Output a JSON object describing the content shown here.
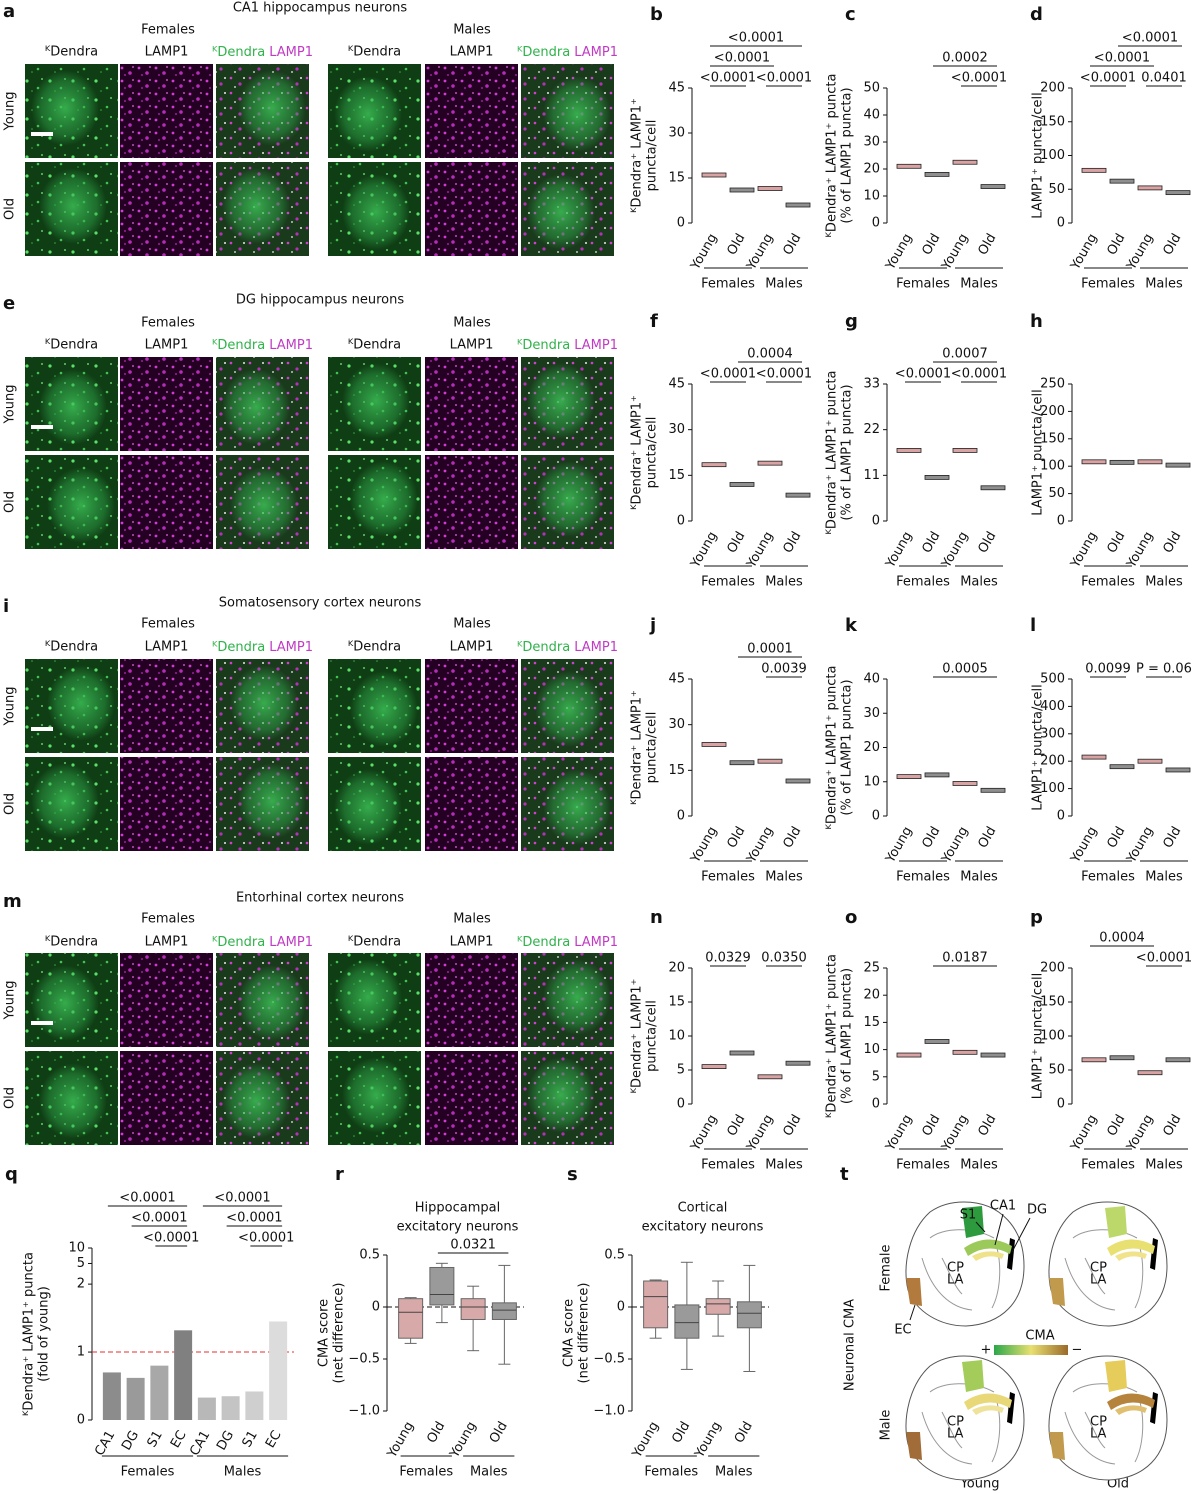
{
  "figure": {
    "image_panels": [
      {
        "letter": "a",
        "title": "CA1 hippocampus neurons",
        "groups": [
          "Females",
          "Males"
        ],
        "channels": [
          "ᴷDendra",
          "LAMP1"
        ],
        "rows": [
          "Young",
          "Old"
        ]
      },
      {
        "letter": "e",
        "title": "DG hippocampus neurons",
        "groups": [
          "Females",
          "Males"
        ],
        "channels": [
          "ᴷDendra",
          "LAMP1"
        ],
        "rows": [
          "Young",
          "Old"
        ]
      },
      {
        "letter": "i",
        "title": "Somatosensory cortex neurons",
        "groups": [
          "Females",
          "Males"
        ],
        "channels": [
          "ᴷDendra",
          "LAMP1"
        ],
        "rows": [
          "Young",
          "Old"
        ]
      },
      {
        "letter": "m",
        "title": "Entorhinal cortex neurons",
        "groups": [
          "Females",
          "Males"
        ],
        "channels": [
          "ᴷDendra",
          "LAMP1"
        ],
        "rows": [
          "Young",
          "Old"
        ]
      }
    ],
    "map": {
      "letter": "t",
      "title": "Neuronal CMA",
      "rows": [
        "Female",
        "Male"
      ],
      "columns": [
        "Young",
        "Old"
      ],
      "regions": [
        "S1",
        "CA1",
        "DG",
        "EC"
      ],
      "structures": [
        "CP",
        "LA"
      ],
      "legend": "CMA",
      "legend_ends": [
        "+",
        "−"
      ]
    }
  },
  "chart_data": [
    {
      "type": "dot",
      "letter": "b",
      "ylabel": [
        "ᴷDendra⁺ LAMP1⁺",
        "puncta/cell"
      ],
      "categories": [
        "Young",
        "Old",
        "Young",
        "Old"
      ],
      "groups": [
        "Females",
        "Males"
      ],
      "values": [
        16,
        11,
        11.5,
        6
      ],
      "colors": [
        "#d9a3a3",
        "#8f8f8f",
        "#d9a3a3",
        "#8f8f8f"
      ],
      "ylim": [
        0,
        45
      ],
      "yticks": [
        0,
        15,
        30,
        45
      ],
      "comparisons": [
        {
          "label": "<0.0001",
          "between": [
            0,
            1
          ]
        },
        {
          "label": "<0.0001",
          "between": [
            2,
            3
          ]
        },
        {
          "label": "<0.0001",
          "between": [
            0,
            2
          ]
        },
        {
          "label": "<0.0001",
          "between": [
            0,
            3
          ]
        }
      ]
    },
    {
      "type": "dot",
      "letter": "c",
      "ylabel": [
        "ᴷDendra⁺ LAMP1⁺ puncta",
        "(% of LAMP1 puncta)"
      ],
      "categories": [
        "Young",
        "Old",
        "Young",
        "Old"
      ],
      "groups": [
        "Females",
        "Males"
      ],
      "values": [
        21,
        18,
        22.5,
        13.5
      ],
      "colors": [
        "#d9a3a3",
        "#8f8f8f",
        "#d9a3a3",
        "#8f8f8f"
      ],
      "ylim": [
        0,
        50
      ],
      "yticks": [
        0,
        10,
        20,
        30,
        40,
        50
      ],
      "comparisons": [
        {
          "label": "<0.0001",
          "between": [
            2,
            3
          ]
        },
        {
          "label": "0.0002",
          "between": [
            1,
            3
          ]
        }
      ]
    },
    {
      "type": "dot",
      "letter": "d",
      "ylabel": [
        "LAMP1⁺ puncta/cell"
      ],
      "categories": [
        "Young",
        "Old",
        "Young",
        "Old"
      ],
      "groups": [
        "Females",
        "Males"
      ],
      "values": [
        78,
        62,
        52,
        45
      ],
      "colors": [
        "#d9a3a3",
        "#8f8f8f",
        "#d9a3a3",
        "#8f8f8f"
      ],
      "ylim": [
        0,
        200
      ],
      "yticks": [
        0,
        50,
        100,
        150,
        200
      ],
      "comparisons": [
        {
          "label": "<0.0001",
          "between": [
            0,
            1
          ]
        },
        {
          "label": "0.0401",
          "between": [
            2,
            3
          ]
        },
        {
          "label": "<0.0001",
          "between": [
            0,
            2
          ]
        },
        {
          "label": "<0.0001",
          "between": [
            1,
            3
          ]
        }
      ]
    },
    {
      "type": "dot",
      "letter": "f",
      "ylabel": [
        "ᴷDendra⁺ LAMP1⁺",
        "puncta/cell"
      ],
      "categories": [
        "Young",
        "Old",
        "Young",
        "Old"
      ],
      "groups": [
        "Females",
        "Males"
      ],
      "values": [
        18.5,
        12,
        19,
        8.5
      ],
      "colors": [
        "#d9a3a3",
        "#8f8f8f",
        "#d9a3a3",
        "#8f8f8f"
      ],
      "ylim": [
        0,
        45
      ],
      "yticks": [
        0,
        15,
        30,
        45
      ],
      "comparisons": [
        {
          "label": "<0.0001",
          "between": [
            0,
            1
          ]
        },
        {
          "label": "<0.0001",
          "between": [
            2,
            3
          ]
        },
        {
          "label": "0.0004",
          "between": [
            1,
            3
          ]
        }
      ]
    },
    {
      "type": "dot",
      "letter": "g",
      "ylabel": [
        "ᴷDendra⁺ LAMP1⁺ puncta",
        "(% of LAMP1 puncta)"
      ],
      "categories": [
        "Young",
        "Old",
        "Young",
        "Old"
      ],
      "groups": [
        "Females",
        "Males"
      ],
      "values": [
        17,
        10.5,
        17,
        8
      ],
      "colors": [
        "#d9a3a3",
        "#8f8f8f",
        "#d9a3a3",
        "#8f8f8f"
      ],
      "ylim": [
        0,
        33
      ],
      "yticks": [
        0,
        11,
        22,
        33
      ],
      "comparisons": [
        {
          "label": "<0.0001",
          "between": [
            0,
            1
          ]
        },
        {
          "label": "<0.0001",
          "between": [
            2,
            3
          ]
        },
        {
          "label": "0.0007",
          "between": [
            1,
            3
          ]
        }
      ]
    },
    {
      "type": "dot",
      "letter": "h",
      "ylabel": [
        "LAMP1⁺ puncta/cell"
      ],
      "categories": [
        "Young",
        "Old",
        "Young",
        "Old"
      ],
      "groups": [
        "Females",
        "Males"
      ],
      "values": [
        108,
        107,
        108,
        102
      ],
      "colors": [
        "#d9a3a3",
        "#8f8f8f",
        "#d9a3a3",
        "#8f8f8f"
      ],
      "ylim": [
        0,
        250
      ],
      "yticks": [
        0,
        50,
        100,
        150,
        200,
        250
      ]
    },
    {
      "type": "dot",
      "letter": "j",
      "ylabel": [
        "ᴷDendra⁺ LAMP1⁺",
        "puncta/cell"
      ],
      "categories": [
        "Young",
        "Old",
        "Young",
        "Old"
      ],
      "groups": [
        "Females",
        "Males"
      ],
      "values": [
        23.5,
        17.5,
        18,
        11.5
      ],
      "colors": [
        "#d9a3a3",
        "#8f8f8f",
        "#d9a3a3",
        "#8f8f8f"
      ],
      "ylim": [
        0,
        45
      ],
      "yticks": [
        0,
        15,
        30,
        45
      ],
      "comparisons": [
        {
          "label": "0.0039",
          "between": [
            2,
            3
          ]
        },
        {
          "label": "0.0001",
          "between": [
            1,
            3
          ]
        }
      ]
    },
    {
      "type": "dot",
      "letter": "k",
      "ylabel": [
        "ᴷDendra⁺ LAMP1⁺ puncta",
        "(% of LAMP1 puncta)"
      ],
      "categories": [
        "Young",
        "Old",
        "Young",
        "Old"
      ],
      "groups": [
        "Females",
        "Males"
      ],
      "values": [
        11.5,
        12,
        9.5,
        7.5
      ],
      "colors": [
        "#d9a3a3",
        "#8f8f8f",
        "#d9a3a3",
        "#8f8f8f"
      ],
      "ylim": [
        0,
        40
      ],
      "yticks": [
        0,
        10,
        20,
        30,
        40
      ],
      "comparisons": [
        {
          "label": "0.0005",
          "between": [
            1,
            3
          ]
        }
      ]
    },
    {
      "type": "dot",
      "letter": "l",
      "ylabel": [
        "LAMP1⁺ puncta/cell"
      ],
      "categories": [
        "Young",
        "Old",
        "Young",
        "Old"
      ],
      "groups": [
        "Females",
        "Males"
      ],
      "values": [
        215,
        180,
        200,
        168
      ],
      "colors": [
        "#d9a3a3",
        "#8f8f8f",
        "#d9a3a3",
        "#8f8f8f"
      ],
      "ylim": [
        0,
        500
      ],
      "yticks": [
        0,
        100,
        200,
        300,
        400,
        500
      ],
      "comparisons": [
        {
          "label": "0.0099",
          "between": [
            0,
            1
          ]
        },
        {
          "label": "P = 0.06",
          "between": [
            2,
            3
          ]
        }
      ]
    },
    {
      "type": "dot",
      "letter": "n",
      "ylabel": [
        "ᴷDendra⁺ LAMP1⁺",
        "puncta/cell"
      ],
      "categories": [
        "Young",
        "Old",
        "Young",
        "Old"
      ],
      "groups": [
        "Females",
        "Males"
      ],
      "values": [
        5.5,
        7.5,
        4,
        6
      ],
      "colors": [
        "#d9a3a3",
        "#8f8f8f",
        "#d9a3a3",
        "#8f8f8f"
      ],
      "ylim": [
        0,
        20
      ],
      "yticks": [
        0,
        5,
        10,
        15,
        20
      ],
      "comparisons": [
        {
          "label": "0.0329",
          "between": [
            0,
            1
          ]
        },
        {
          "label": "0.0350",
          "between": [
            2,
            3
          ]
        }
      ]
    },
    {
      "type": "dot",
      "letter": "o",
      "ylabel": [
        "ᴷDendra⁺ LAMP1⁺ puncta",
        "(% of LAMP1 puncta)"
      ],
      "categories": [
        "Young",
        "Old",
        "Young",
        "Old"
      ],
      "groups": [
        "Females",
        "Males"
      ],
      "values": [
        9,
        11.5,
        9.5,
        9
      ],
      "colors": [
        "#d9a3a3",
        "#8f8f8f",
        "#d9a3a3",
        "#8f8f8f"
      ],
      "ylim": [
        0,
        25
      ],
      "yticks": [
        0,
        5,
        10,
        15,
        20,
        25
      ],
      "comparisons": [
        {
          "label": "0.0187",
          "between": [
            1,
            3
          ]
        }
      ]
    },
    {
      "type": "dot",
      "letter": "p",
      "ylabel": [
        "LAMP1⁺ puncta/cell"
      ],
      "categories": [
        "Young",
        "Old",
        "Young",
        "Old"
      ],
      "groups": [
        "Females",
        "Males"
      ],
      "values": [
        65,
        68,
        46,
        65
      ],
      "colors": [
        "#d9a3a3",
        "#8f8f8f",
        "#d9a3a3",
        "#8f8f8f"
      ],
      "ylim": [
        0,
        200
      ],
      "yticks": [
        0,
        50,
        100,
        150,
        200
      ],
      "comparisons": [
        {
          "label": "<0.0001",
          "between": [
            2,
            3
          ]
        },
        {
          "label": "0.0004",
          "between": [
            0,
            2
          ]
        }
      ]
    },
    {
      "type": "bar",
      "letter": "q",
      "ylabel": [
        "ᴷDendra⁺ LAMP1⁺ puncta",
        "(fold of young)"
      ],
      "categories": [
        "CA1",
        "DG",
        "S1",
        "EC",
        "CA1",
        "DG",
        "S1",
        "EC"
      ],
      "groups": [
        "Females",
        "Males"
      ],
      "values": [
        0.7,
        0.62,
        0.8,
        1.32,
        0.33,
        0.35,
        0.42,
        1.45
      ],
      "colors": [
        "#8c8c8c",
        "#9a9a9a",
        "#a8a8a8",
        "#808080",
        "#b8b8b8",
        "#c4c4c4",
        "#cfcfcf",
        "#dcdcdc"
      ],
      "ylim": [
        0,
        10
      ],
      "yticks": [
        0,
        1,
        2,
        5,
        10
      ],
      "refline": 1,
      "comparisons": [
        {
          "label": "<0.0001",
          "between": [
            2,
            3
          ]
        },
        {
          "label": "<0.0001",
          "between": [
            1,
            3
          ]
        },
        {
          "label": "<0.0001",
          "between": [
            0,
            3
          ]
        },
        {
          "label": "<0.0001",
          "between": [
            6,
            7
          ]
        },
        {
          "label": "<0.0001",
          "between": [
            5,
            7
          ]
        },
        {
          "label": "<0.0001",
          "between": [
            4,
            7
          ]
        }
      ]
    },
    {
      "type": "box",
      "letter": "r",
      "title": [
        "Hippocampal",
        "excitatory neurons"
      ],
      "ylabel": [
        "CMA score",
        "(net difference)"
      ],
      "categories": [
        "Young",
        "Old",
        "Young",
        "Old"
      ],
      "groups": [
        "Females",
        "Males"
      ],
      "boxes": [
        {
          "min": -0.35,
          "q1": -0.3,
          "median": -0.05,
          "q3": 0.08,
          "max": 0.09
        },
        {
          "min": -0.15,
          "q1": 0.02,
          "median": 0.12,
          "q3": 0.38,
          "max": 0.42
        },
        {
          "min": -0.42,
          "q1": -0.12,
          "median": 0,
          "q3": 0.08,
          "max": 0.2
        },
        {
          "min": -0.55,
          "q1": -0.12,
          "median": -0.03,
          "q3": 0.04,
          "max": 0.4
        }
      ],
      "colors": [
        "#d8a9a9",
        "#9a9a9a",
        "#d8a9a9",
        "#9a9a9a"
      ],
      "ylim": [
        -1,
        0.5
      ],
      "yticks": [
        {
          "value": -1,
          "label": "−1.0"
        },
        {
          "value": -0.5,
          "label": "−0.5"
        },
        0,
        0.5
      ],
      "refline": 0,
      "comparisons": [
        {
          "label": "0.0321",
          "between": [
            1,
            3
          ]
        }
      ]
    },
    {
      "type": "box",
      "letter": "s",
      "title": [
        "Cortical",
        "excitatory neurons"
      ],
      "ylabel": [
        "CMA score",
        "(net difference)"
      ],
      "categories": [
        "Young",
        "Old",
        "Young",
        "Old"
      ],
      "groups": [
        "Females",
        "Males"
      ],
      "boxes": [
        {
          "min": -0.3,
          "q1": -0.2,
          "median": 0.1,
          "q3": 0.25,
          "max": 0.26
        },
        {
          "min": -0.6,
          "q1": -0.3,
          "median": -0.15,
          "q3": 0.02,
          "max": 0.43
        },
        {
          "min": -0.28,
          "q1": -0.07,
          "median": 0.03,
          "q3": 0.08,
          "max": 0.25
        },
        {
          "min": -0.62,
          "q1": -0.2,
          "median": -0.06,
          "q3": 0.05,
          "max": 0.4
        }
      ],
      "colors": [
        "#d8a9a9",
        "#9a9a9a",
        "#d8a9a9",
        "#9a9a9a"
      ],
      "ylim": [
        -1,
        0.5
      ],
      "yticks": [
        {
          "value": -1,
          "label": "−1.0"
        },
        {
          "value": -0.5,
          "label": "−0.5"
        },
        0,
        0.5
      ],
      "refline": 0
    }
  ]
}
